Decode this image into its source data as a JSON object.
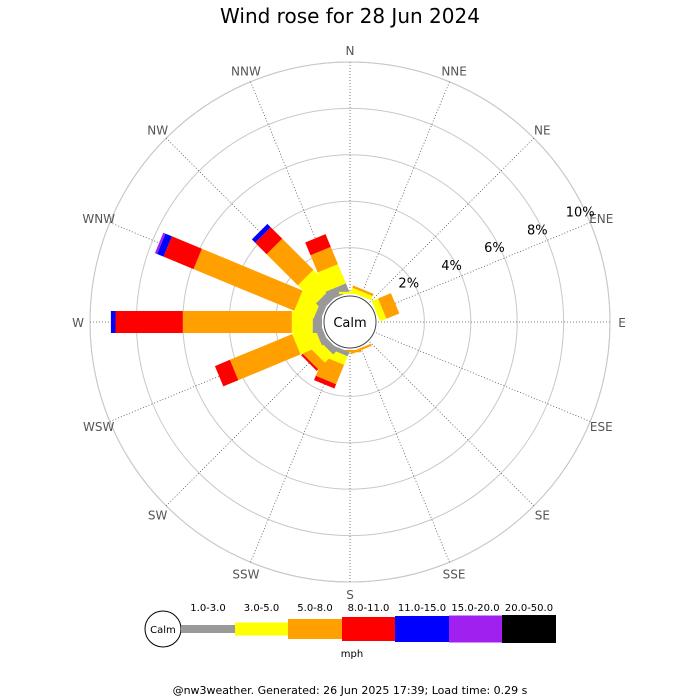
{
  "chart_data": {
    "type": "wind-rose",
    "title": "Wind rose for 28 Jun 2024",
    "units": "mph",
    "calm_label": "Calm",
    "radial_unit": "%",
    "radial_ticks": [
      {
        "value": 2,
        "label": "2%"
      },
      {
        "value": 4,
        "label": "4%"
      },
      {
        "value": 6,
        "label": "6%"
      },
      {
        "value": 8,
        "label": "8%"
      },
      {
        "value": 10,
        "label": "10%"
      }
    ],
    "r_max": 10,
    "directions": [
      "N",
      "NNE",
      "NE",
      "ENE",
      "E",
      "ESE",
      "SE",
      "SSE",
      "S",
      "SSW",
      "SW",
      "WSW",
      "W",
      "WNW",
      "NW",
      "NNW"
    ],
    "speed_bins": [
      {
        "label": "Calm",
        "color": "#ffffff"
      },
      {
        "label": "1.0-3.0",
        "color": "#999999"
      },
      {
        "label": "3.0-5.0",
        "color": "#ffff00"
      },
      {
        "label": "5.0-8.0",
        "color": "#ffa000"
      },
      {
        "label": "8.0-11.0",
        "color": "#ff0000"
      },
      {
        "label": "11.0-15.0",
        "color": "#0000ff"
      },
      {
        "label": "15.0-20.0",
        "color": "#a020f0"
      },
      {
        "label": "20.0-50.0",
        "color": "#000000"
      }
    ],
    "series": [
      {
        "direction": "NNE",
        "cumulative_percent": [
          0.0,
          0.2,
          0.3,
          0.3,
          0.3,
          0.3,
          0.3
        ]
      },
      {
        "direction": "ENE",
        "cumulative_percent": [
          0.0,
          0.3,
          0.9,
          0.9,
          0.9,
          0.9,
          0.9
        ]
      },
      {
        "direction": "SSE",
        "cumulative_percent": [
          0.0,
          0.0,
          0.1,
          0.1,
          0.1,
          0.1,
          0.1
        ]
      },
      {
        "direction": "S",
        "cumulative_percent": [
          0.0,
          0.0,
          0.1,
          0.1,
          0.1,
          0.1,
          0.1
        ]
      },
      {
        "direction": "SSW",
        "cumulative_percent": [
          0.2,
          0.6,
          1.5,
          1.7,
          1.7,
          1.7,
          1.7
        ]
      },
      {
        "direction": "SW",
        "cumulative_percent": [
          0.3,
          0.8,
          1.2,
          1.3,
          1.3,
          1.3,
          1.3
        ]
      },
      {
        "direction": "WSW",
        "cumulative_percent": [
          0.3,
          1.3,
          4.2,
          4.9,
          4.9,
          4.9,
          4.9
        ]
      },
      {
        "direction": "W",
        "cumulative_percent": [
          0.4,
          1.3,
          6.0,
          8.9,
          9.1,
          9.1,
          9.1
        ]
      },
      {
        "direction": "WNW",
        "cumulative_percent": [
          0.3,
          1.2,
          5.9,
          7.3,
          7.6,
          7.7,
          7.7
        ]
      },
      {
        "direction": "NW",
        "cumulative_percent": [
          0.4,
          1.5,
          3.4,
          4.1,
          4.3,
          4.3,
          4.3
        ]
      },
      {
        "direction": "NNW",
        "cumulative_percent": [
          0.4,
          1.3,
          2.1,
          2.7,
          2.7,
          2.7,
          2.7
        ]
      },
      {
        "direction": "N",
        "cumulative_percent": [
          0.0,
          0.1,
          0.1,
          0.1,
          0.1,
          0.1,
          0.1
        ]
      }
    ]
  },
  "footer": "@nw3weather.  Generated: 26 Jun 2025 17:39; Load time: 0.29 s"
}
